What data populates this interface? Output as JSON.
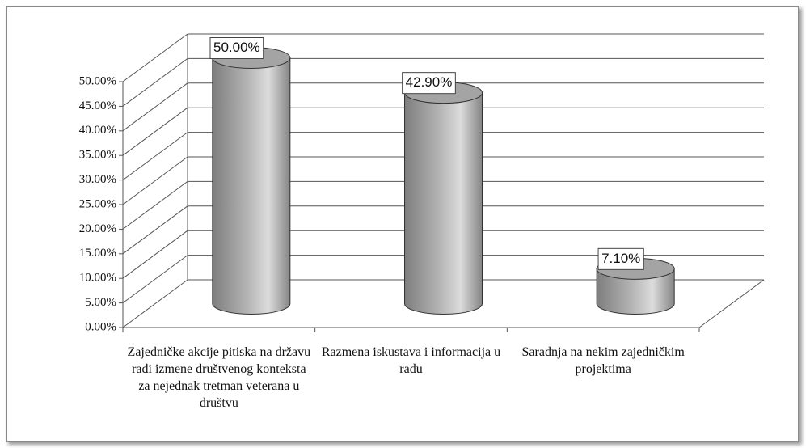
{
  "chart_data": {
    "type": "cylinder",
    "categories": [
      "Zajedničke akcije pitiska na državu radi izmene društvenog konteksta za nejednak tretman veterana u društvu",
      "Razmena iskustava i informacija u radu",
      "Saradnja na nekim zajedničkim projektima"
    ],
    "values": [
      50,
      42.9,
      7.1
    ],
    "value_labels": [
      "50.00%",
      "42.90%",
      "7.10%"
    ],
    "color": "#a0a0a0",
    "ylim": [
      0,
      50
    ],
    "yticks": [
      {
        "value": 0,
        "label": "0.00%"
      },
      {
        "value": 5,
        "label": "5.00%"
      },
      {
        "value": 10,
        "label": "10.00%"
      },
      {
        "value": 15,
        "label": "15.00%"
      },
      {
        "value": 20,
        "label": "20.00%"
      },
      {
        "value": 25,
        "label": "25.00%"
      },
      {
        "value": 30,
        "label": "30.00%"
      },
      {
        "value": 35,
        "label": "35.00%"
      },
      {
        "value": 40,
        "label": "40.00%"
      },
      {
        "value": 45,
        "label": "45.00%"
      },
      {
        "value": 50,
        "label": "50.00%"
      }
    ],
    "grid": true
  }
}
